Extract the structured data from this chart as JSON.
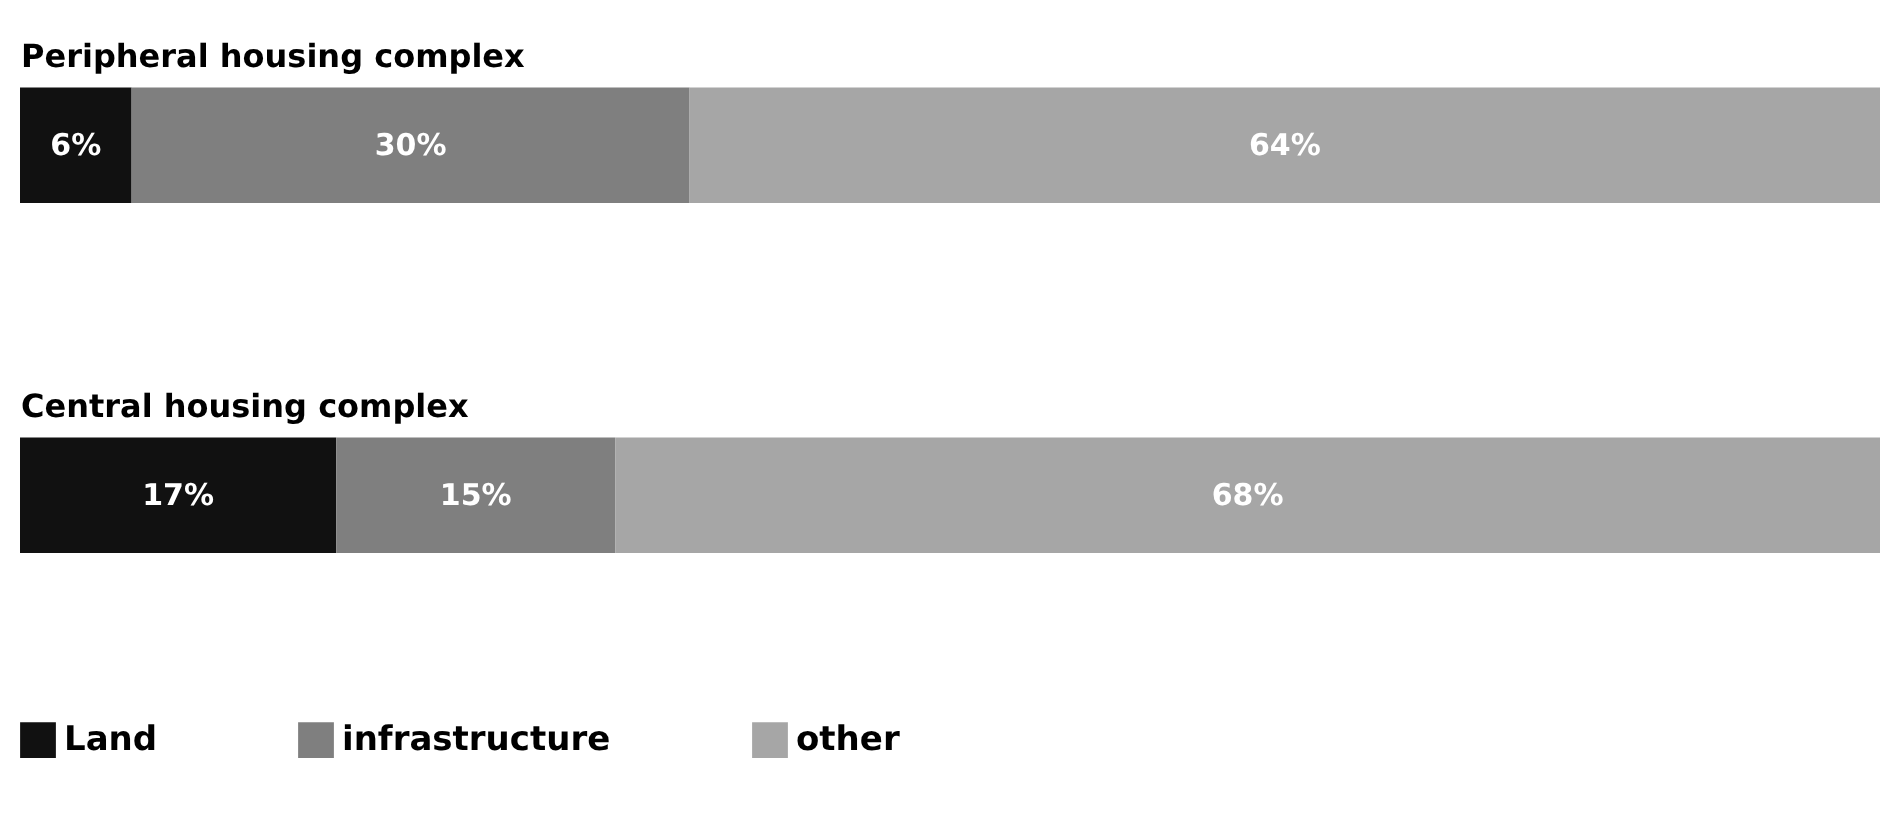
{
  "chart_data": {
    "type": "bar",
    "orientation": "horizontal",
    "stacked": true,
    "categories": [
      "Peripheral housing complex",
      "Central housing complex"
    ],
    "series": [
      {
        "name": "Land",
        "color": "#111111",
        "values": [
          6,
          17
        ],
        "value_labels": [
          "6%",
          "17%"
        ]
      },
      {
        "name": "infrastructure",
        "color": "#7f7f7f",
        "values": [
          30,
          15
        ],
        "value_labels": [
          "30%",
          "15%"
        ]
      },
      {
        "name": "other",
        "color": "#a6a6a6",
        "values": [
          64,
          68
        ],
        "value_labels": [
          "64%",
          "68%"
        ]
      }
    ],
    "legend": "bottom left",
    "grid": false
  }
}
